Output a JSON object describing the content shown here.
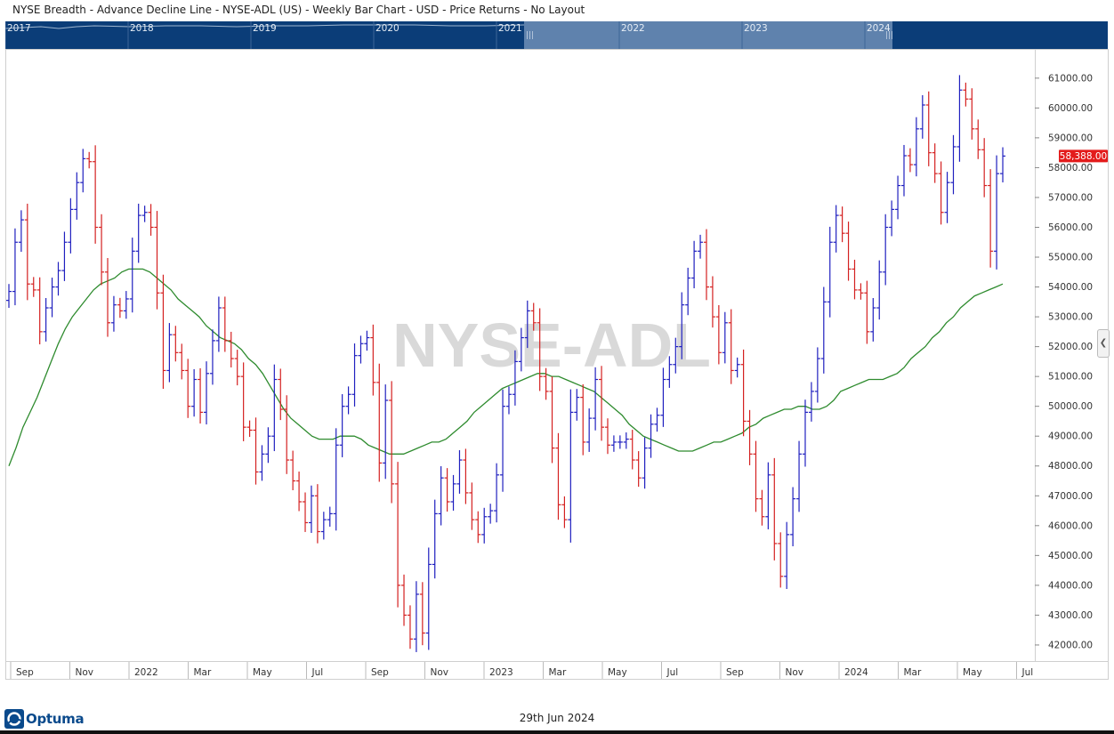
{
  "window": {
    "title": "NYSE Breadth - Advance Decline Line - NYSE-ADL (US) - Weekly Bar Chart - USD - Price Returns - No Layout"
  },
  "navigator": {
    "years": [
      "2017",
      "2018",
      "2019",
      "2020",
      "2021",
      "2022",
      "2023",
      "2024"
    ],
    "handle_glyph": "|||"
  },
  "footer": {
    "brand": "Optuma",
    "date": "29th Jun 2024"
  },
  "colors": {
    "up_bar": "#1f1fbf",
    "down_bar": "#d42020",
    "moving_average": "#2e8b2e",
    "navigator_bg": "#0b3d78",
    "navigator_selected": "#5f82ad",
    "last_price_bg": "#e31b1b"
  },
  "chart_data": {
    "type": "ohlc-bar",
    "watermark": "NYSE-ADL",
    "last_value_label": "58,388.00",
    "ylim": [
      41700,
      61800
    ],
    "y_ticks": [
      "42000.00",
      "43000.00",
      "44000.00",
      "45000.00",
      "46000.00",
      "47000.00",
      "48000.00",
      "49000.00",
      "50000.00",
      "51000.00",
      "52000.00",
      "53000.00",
      "54000.00",
      "55000.00",
      "56000.00",
      "57000.00",
      "58000.00",
      "59000.00",
      "60000.00",
      "61000.00"
    ],
    "x_ticks": [
      "Sep",
      "Nov",
      "2022",
      "Mar",
      "May",
      "Jul",
      "Sep",
      "Nov",
      "2023",
      "Mar",
      "May",
      "Jul",
      "Sep",
      "Nov",
      "2024",
      "Mar",
      "May",
      "Jul"
    ],
    "bars_close": [
      53850,
      55500,
      56250,
      54100,
      53900,
      52500,
      53300,
      54000,
      54550,
      55500,
      56600,
      57500,
      58300,
      58200,
      56000,
      54500,
      52800,
      53400,
      53200,
      53600,
      55200,
      56400,
      56500,
      56000,
      53800,
      51200,
      52400,
      51800,
      51200,
      50000,
      50900,
      49800,
      51100,
      52200,
      53300,
      52200,
      51600,
      51000,
      49300,
      49200,
      47800,
      48400,
      49000,
      50900,
      49900,
      48200,
      47500,
      46800,
      46100,
      47000,
      45800,
      46200,
      46400,
      48700,
      50000,
      50400,
      51700,
      52100,
      52300,
      50800,
      48100,
      50200,
      47400,
      44000,
      43000,
      42200,
      43700,
      42400,
      44700,
      46400,
      47600,
      46800,
      47400,
      48200,
      47100,
      46200,
      45700,
      46300,
      46500,
      47700,
      50000,
      50400,
      51500,
      52300,
      53200,
      52800,
      51000,
      50500,
      48600,
      46700,
      46200,
      49800,
      50300,
      48800,
      49600,
      50900,
      49300,
      48700,
      48800,
      48800,
      48900,
      48200,
      47600,
      48600,
      49400,
      49700,
      50900,
      51400,
      52000,
      53400,
      54300,
      55200,
      55500,
      54000,
      53000,
      51800,
      52800,
      51200,
      51400,
      49500,
      48400,
      46900,
      46300,
      47700,
      45400,
      44300,
      45700,
      46900,
      48400,
      49800,
      50500,
      51600,
      53500,
      55500,
      56400,
      55800,
      54600,
      53900,
      53800,
      52500,
      53300,
      54500,
      56000,
      56600,
      57400,
      58400,
      58100,
      59300,
      60100,
      58500,
      57800,
      56500,
      57500,
      58700,
      60600,
      60300,
      59300,
      58600,
      57400,
      55200,
      57800,
      58388
    ],
    "moving_average": [
      48000,
      48600,
      49300,
      49800,
      50300,
      50900,
      51500,
      52100,
      52600,
      53000,
      53300,
      53600,
      53900,
      54100,
      54200,
      54300,
      54500,
      54600,
      54600,
      54600,
      54500,
      54300,
      54100,
      53900,
      53600,
      53400,
      53200,
      53000,
      52700,
      52500,
      52300,
      52200,
      52100,
      51900,
      51600,
      51400,
      51100,
      50700,
      50300,
      49900,
      49600,
      49400,
      49200,
      49000,
      48900,
      48900,
      48900,
      49000,
      49000,
      49000,
      48900,
      48700,
      48600,
      48500,
      48400,
      48400,
      48400,
      48500,
      48600,
      48700,
      48800,
      48800,
      48900,
      49100,
      49300,
      49500,
      49800,
      50000,
      50200,
      50400,
      50600,
      50700,
      50800,
      50900,
      51000,
      51100,
      51100,
      51000,
      51000,
      50900,
      50800,
      50700,
      50600,
      50500,
      50300,
      50100,
      49900,
      49700,
      49400,
      49200,
      49000,
      48900,
      48800,
      48700,
      48600,
      48500,
      48500,
      48500,
      48600,
      48700,
      48800,
      48800,
      48900,
      49000,
      49100,
      49300,
      49400,
      49600,
      49700,
      49800,
      49900,
      49900,
      50000,
      50000,
      49900,
      49900,
      50000,
      50200,
      50500,
      50600,
      50700,
      50800,
      50900,
      50900,
      50900,
      51000,
      51100,
      51300,
      51600,
      51800,
      52000,
      52300,
      52500,
      52800,
      53000,
      53300,
      53500,
      53700,
      53800,
      53900,
      54000,
      54100
    ],
    "series": [
      {
        "name": "NYSE-ADL",
        "style": "ohlc-bars"
      },
      {
        "name": "",
        "style": "line"
      }
    ]
  }
}
